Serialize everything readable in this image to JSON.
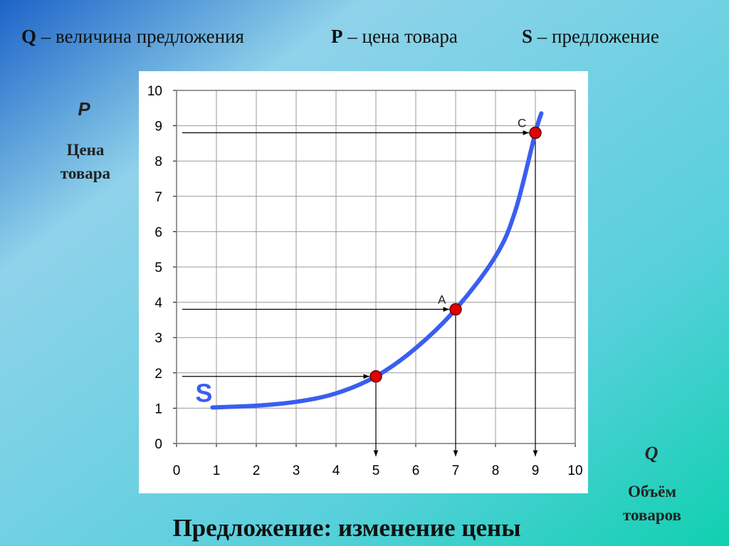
{
  "header": [
    {
      "symbol": "Q",
      "text": "– величина предложения"
    },
    {
      "symbol": "P",
      "text": "– цена товара"
    },
    {
      "symbol": "S",
      "text": "– предложение"
    }
  ],
  "chart_data": {
    "type": "line",
    "title": "Предложение: изменение цены",
    "y_symbol": "P",
    "y_label": [
      "Цена",
      "товара"
    ],
    "x_symbol": "Q",
    "x_label": [
      "Объём",
      "товаров"
    ],
    "series": [
      {
        "name": "S",
        "color": "#3a5ef0",
        "x": [
          0.9,
          2,
          3,
          4,
          5,
          6,
          7,
          8,
          8.5,
          9,
          9.15
        ],
        "values": [
          1.02,
          1.07,
          1.18,
          1.42,
          1.9,
          2.7,
          3.8,
          5.3,
          6.6,
          8.8,
          9.35
        ]
      }
    ],
    "points": {
      "x": [
        5,
        7,
        9
      ],
      "values": [
        1.9,
        3.8,
        8.8
      ],
      "labels": [
        null,
        "A",
        "C"
      ],
      "color": "#e00000"
    },
    "xlim": [
      0,
      10
    ],
    "ylim": [
      0,
      10
    ],
    "xticks": [
      0,
      1,
      2,
      3,
      4,
      5,
      6,
      7,
      8,
      9,
      10
    ],
    "yticks": [
      0,
      1,
      2,
      3,
      4,
      5,
      6,
      7,
      8,
      9,
      10
    ],
    "grid": true
  }
}
